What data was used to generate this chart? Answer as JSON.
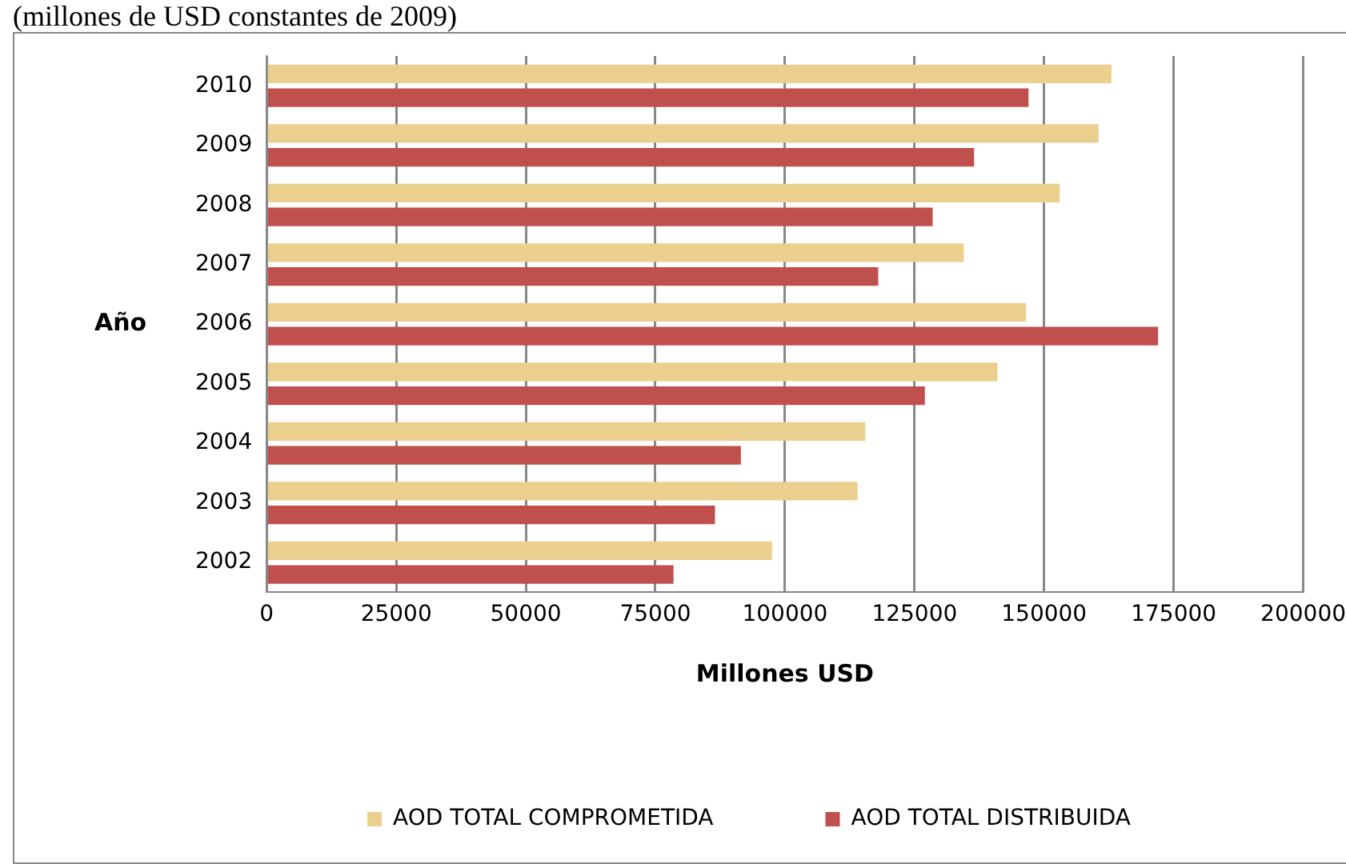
{
  "chart_data": {
    "type": "bar",
    "orientation": "horizontal",
    "title": "(millones de USD constantes de 2009)",
    "xlabel": "Millones USD",
    "ylabel": "Año",
    "categories": [
      "2010",
      "2009",
      "2008",
      "2007",
      "2006",
      "2005",
      "2004",
      "2003",
      "2002"
    ],
    "series": [
      {
        "name": "AOD TOTAL COMPROMETIDA",
        "color": "#ebcf8f",
        "values": [
          163000,
          160500,
          153000,
          134500,
          146500,
          141000,
          115500,
          114000,
          97500
        ]
      },
      {
        "name": "AOD TOTAL DISTRIBUIDA",
        "color": "#c0504d",
        "values": [
          147000,
          136500,
          128500,
          118000,
          172000,
          127000,
          91500,
          86500,
          78500
        ]
      }
    ],
    "xlim": [
      0,
      200000
    ],
    "xticks": [
      0,
      25000,
      50000,
      75000,
      100000,
      125000,
      150000,
      175000,
      200000
    ],
    "grid": "x",
    "legend": "bottom"
  }
}
